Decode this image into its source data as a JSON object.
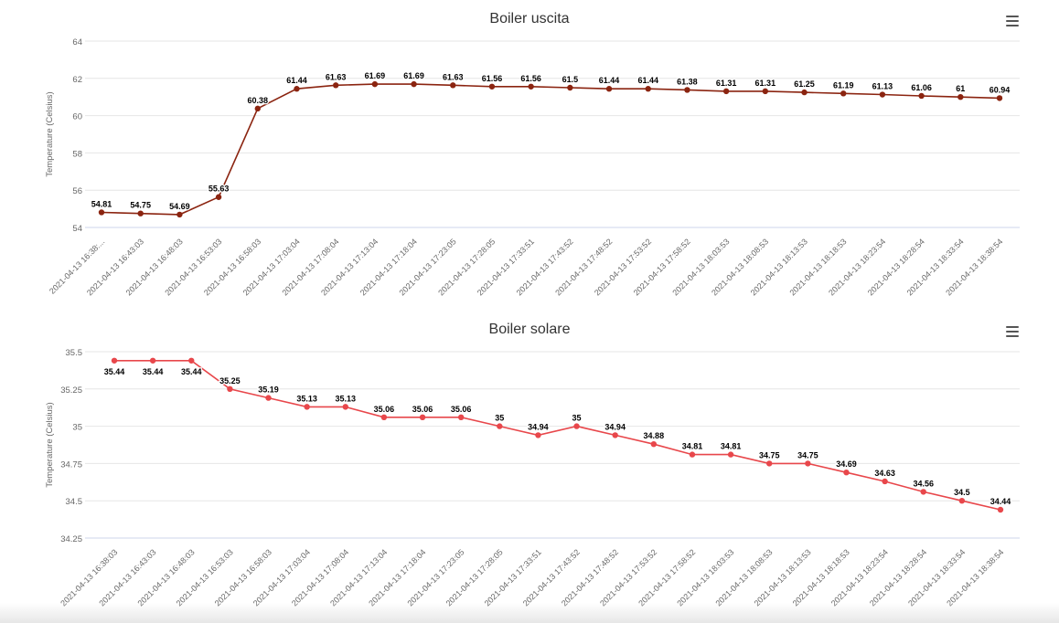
{
  "chart_data": [
    {
      "type": "line",
      "title": "Boiler uscita",
      "ylabel": "Temperature (Celsius)",
      "ylim": [
        54,
        64
      ],
      "yticks": [
        54,
        56,
        58,
        60,
        62,
        64
      ],
      "categories": [
        "2021-04-13 16:38:...",
        "2021-04-13 16:43:03",
        "2021-04-13 16:48:03",
        "2021-04-13 16:53:03",
        "2021-04-13 16:58:03",
        "2021-04-13 17:03:04",
        "2021-04-13 17:08:04",
        "2021-04-13 17:13:04",
        "2021-04-13 17:18:04",
        "2021-04-13 17:23:05",
        "2021-04-13 17:28:05",
        "2021-04-13 17:33:51",
        "2021-04-13 17:43:52",
        "2021-04-13 17:48:52",
        "2021-04-13 17:53:52",
        "2021-04-13 17:58:52",
        "2021-04-13 18:03:53",
        "2021-04-13 18:08:53",
        "2021-04-13 18:13:53",
        "2021-04-13 18:18:53",
        "2021-04-13 18:23:54",
        "2021-04-13 18:28:54",
        "2021-04-13 18:33:54",
        "2021-04-13 18:38:54"
      ],
      "values": [
        54.81,
        54.75,
        54.69,
        55.63,
        60.38,
        61.44,
        61.63,
        61.69,
        61.69,
        61.63,
        61.56,
        61.56,
        61.5,
        61.44,
        61.44,
        61.38,
        61.31,
        61.31,
        61.25,
        61.19,
        61.13,
        61.06,
        61,
        60.94
      ],
      "labels": [
        "54.81",
        "54.75",
        "54.69",
        "55.63",
        "60.38",
        "61.44",
        "61.63",
        "61.69",
        "61.69",
        "61.63",
        "61.56",
        "61.56",
        "61.5",
        "61.44",
        "61.44",
        "61.38",
        "61.31",
        "61.31",
        "61.25",
        "61.19",
        "61.13",
        "61.06",
        "61",
        "60.94"
      ],
      "label_position": "above",
      "color": "#8b2410",
      "grid": true
    },
    {
      "type": "line",
      "title": "Boiler solare",
      "ylabel": "Temperature (Celsius)",
      "ylim": [
        34.25,
        35.5
      ],
      "yticks": [
        34.25,
        34.5,
        34.75,
        35,
        35.25,
        35.5
      ],
      "categories": [
        "2021-04-13 16:38:03",
        "2021-04-13 16:43:03",
        "2021-04-13 16:48:03",
        "2021-04-13 16:53:03",
        "2021-04-13 16:58:03",
        "2021-04-13 17:03:04",
        "2021-04-13 17:08:04",
        "2021-04-13 17:13:04",
        "2021-04-13 17:18:04",
        "2021-04-13 17:23:05",
        "2021-04-13 17:28:05",
        "2021-04-13 17:33:51",
        "2021-04-13 17:43:52",
        "2021-04-13 17:48:52",
        "2021-04-13 17:53:52",
        "2021-04-13 17:58:52",
        "2021-04-13 18:03:53",
        "2021-04-13 18:08:53",
        "2021-04-13 18:13:53",
        "2021-04-13 18:18:53",
        "2021-04-13 18:23:54",
        "2021-04-13 18:28:54",
        "2021-04-13 18:33:54",
        "2021-04-13 18:38:54"
      ],
      "values": [
        35.44,
        35.44,
        35.44,
        35.25,
        35.19,
        35.13,
        35.13,
        35.06,
        35.06,
        35.06,
        35,
        34.94,
        35,
        34.94,
        34.88,
        34.81,
        34.81,
        34.75,
        34.75,
        34.69,
        34.63,
        34.56,
        34.5,
        34.44
      ],
      "labels": [
        "35.44",
        "35.44",
        "35.44",
        "35.25",
        "35.19",
        "35.13",
        "35.13",
        "35.06",
        "35.06",
        "35.06",
        "35",
        "34.94",
        "35",
        "34.94",
        "34.88",
        "34.81",
        "34.81",
        "34.75",
        "34.75",
        "34.69",
        "34.63",
        "34.56",
        "34.5",
        "34.44"
      ],
      "label_position": "mixed",
      "color": "#e8474b",
      "grid": true
    }
  ],
  "icons": {
    "menu": "hamburger-menu-icon"
  }
}
